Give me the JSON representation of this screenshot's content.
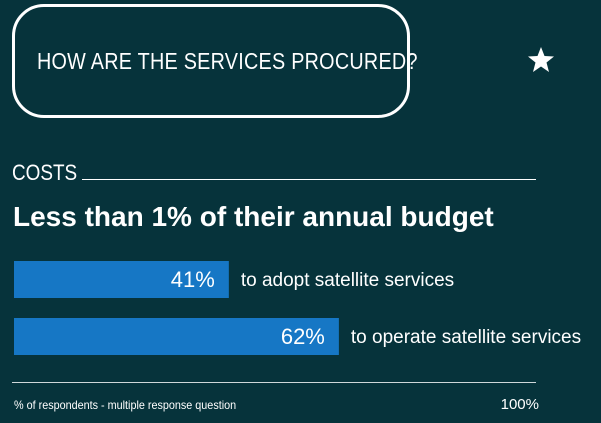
{
  "header": {
    "title": "HOW ARE THE SERVICES PROCURED?",
    "icon": "star-icon"
  },
  "section": {
    "label": "COSTS"
  },
  "headline": "Less than 1% of their annual budget",
  "chart_data": {
    "type": "bar",
    "orientation": "horizontal",
    "categories": [
      "to adopt satellite services",
      "to operate satellite services"
    ],
    "values": [
      41,
      62
    ],
    "value_labels": [
      "41%",
      "62%"
    ],
    "xlim": [
      0,
      100
    ],
    "max_label": "100%",
    "bar_color": "#1677c5",
    "footnote": "% of respondents - multiple response question"
  },
  "colors": {
    "background": "#06333b",
    "bar": "#1677c5",
    "text": "#ffffff"
  }
}
